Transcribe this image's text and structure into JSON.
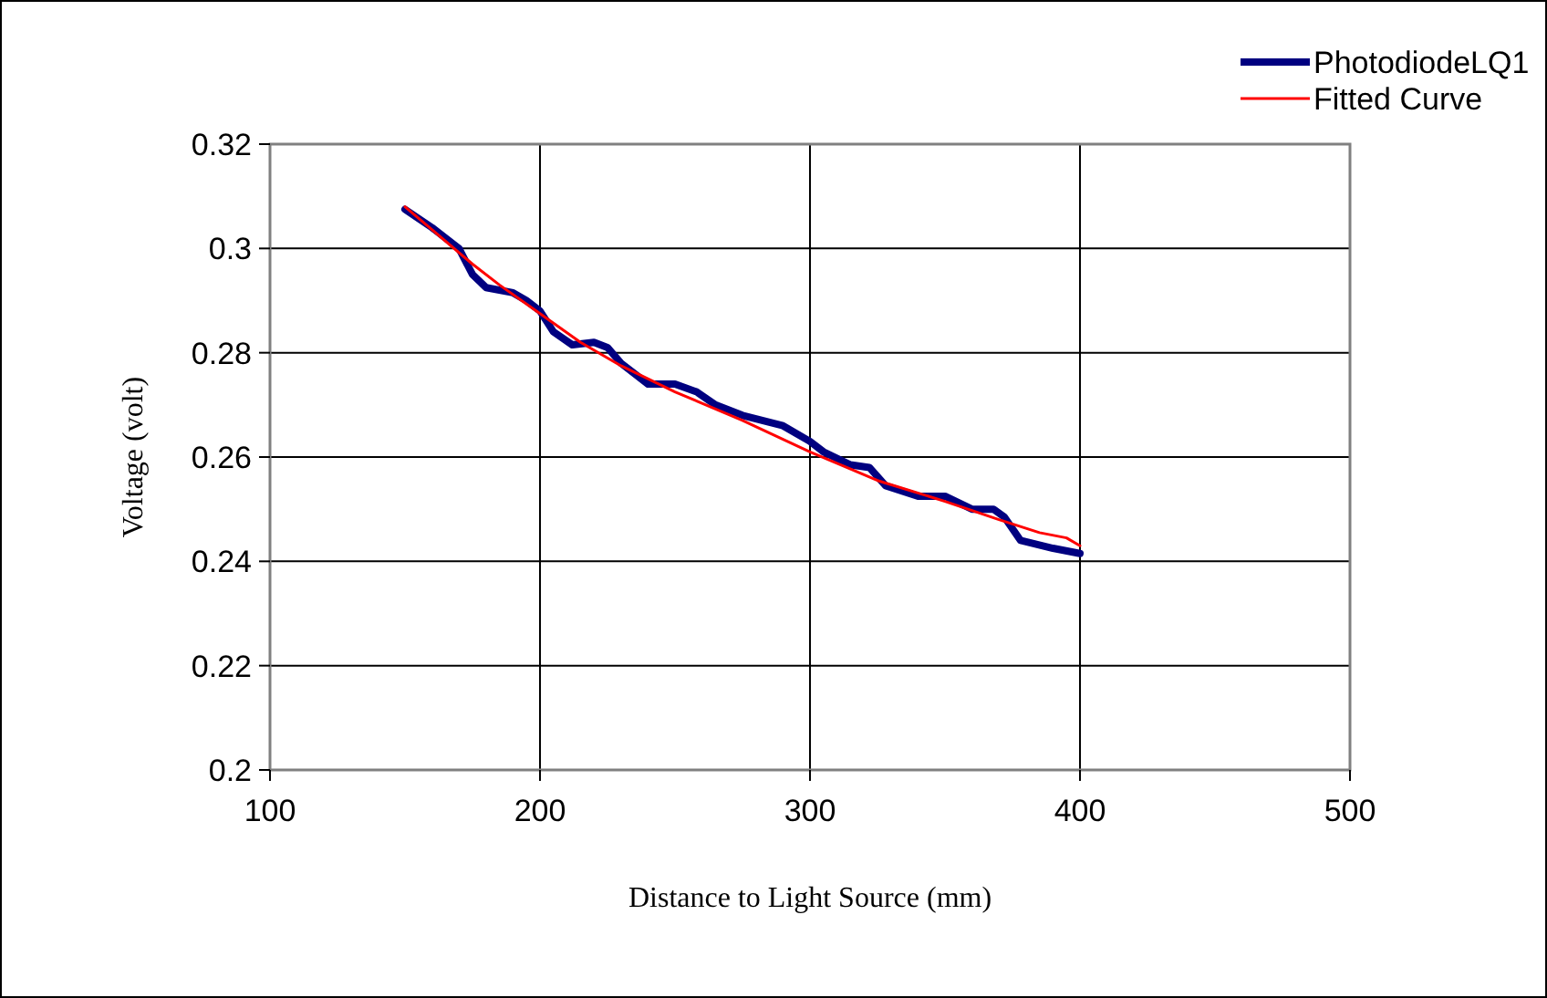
{
  "chart_data": {
    "type": "line",
    "xlabel": "Distance to Light Source (mm)",
    "ylabel": "Voltage (volt)",
    "xlim": [
      100,
      500
    ],
    "xticks": [
      100,
      200,
      300,
      400,
      500
    ],
    "ylim": [
      0.2,
      0.32
    ],
    "yticks": [
      0.2,
      0.22,
      0.24,
      0.26,
      0.28,
      0.3,
      0.32
    ],
    "grid": true,
    "legend": "top right",
    "line_style": "solid",
    "marker": "none",
    "series": [
      {
        "name": "PhotodiodeLQ1",
        "color": "#000080",
        "x": [
          150,
          160,
          170,
          175,
          180,
          190,
          195,
          200,
          205,
          212,
          220,
          225,
          230,
          240,
          250,
          258,
          265,
          275,
          290,
          300,
          305,
          315,
          322,
          328,
          340,
          350,
          360,
          368,
          372,
          378,
          390,
          400
        ],
        "values": [
          0.3075,
          0.304,
          0.3,
          0.295,
          0.2925,
          0.2915,
          0.29,
          0.288,
          0.284,
          0.2815,
          0.282,
          0.281,
          0.278,
          0.274,
          0.274,
          0.2725,
          0.27,
          0.268,
          0.266,
          0.263,
          0.261,
          0.2585,
          0.258,
          0.2545,
          0.2525,
          0.2525,
          0.25,
          0.25,
          0.2485,
          0.244,
          0.2425,
          0.2415
        ]
      },
      {
        "name": "Fitted Curve",
        "color": "#ff0000",
        "x": [
          150,
          175,
          185,
          200,
          215,
          230,
          250,
          275,
          300,
          325,
          350,
          370,
          385,
          395,
          400
        ],
        "values": [
          0.308,
          0.297,
          0.293,
          0.2875,
          0.282,
          0.2775,
          0.2725,
          0.267,
          0.261,
          0.2555,
          0.2515,
          0.248,
          0.2455,
          0.2445,
          0.243
        ]
      }
    ]
  }
}
